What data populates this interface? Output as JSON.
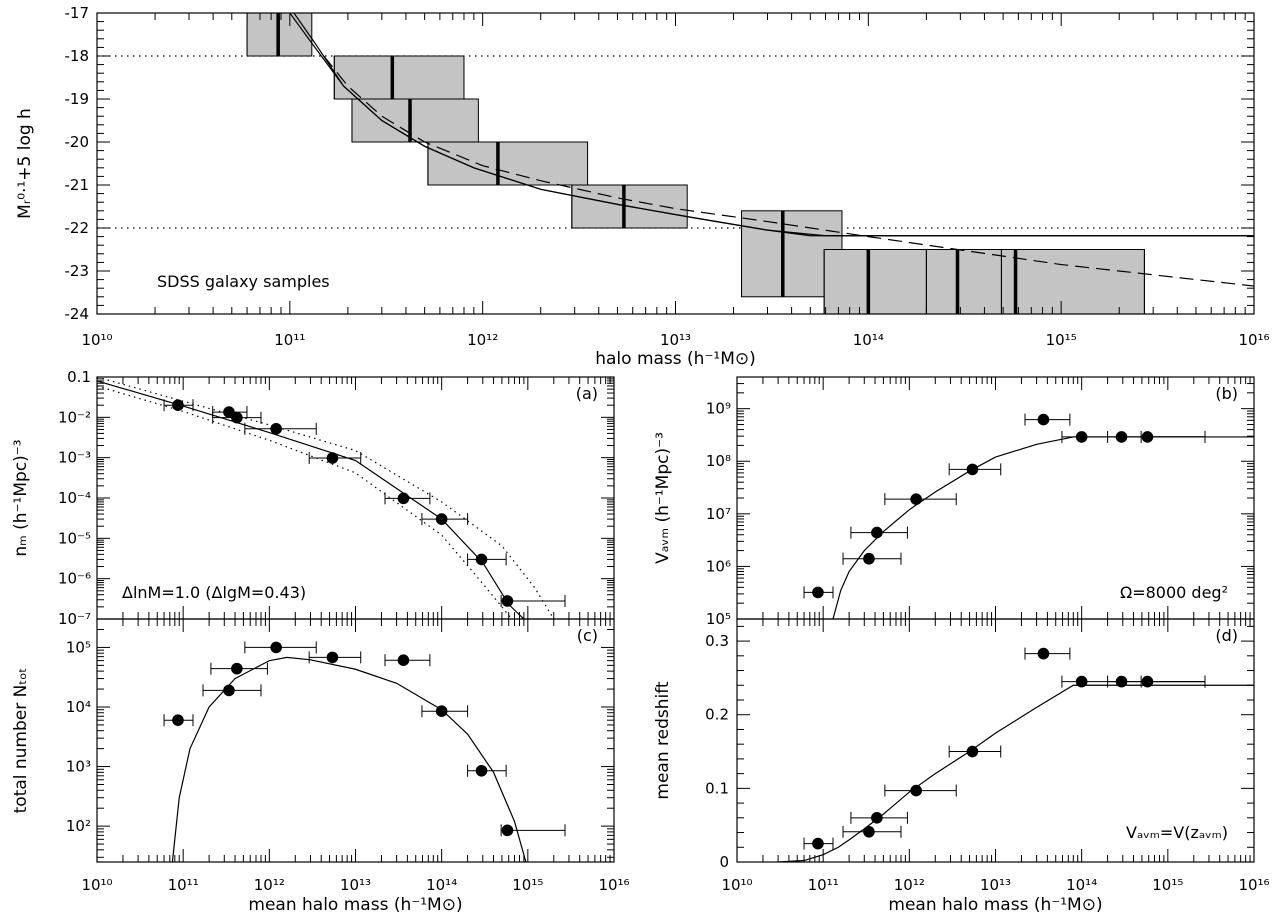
{
  "chart_data": [
    {
      "id": "top",
      "type": "box",
      "xscale": "log",
      "xlim": [
        10000000000.0,
        1e+16
      ],
      "ylim": [
        -24,
        -17
      ],
      "y_inverted": true,
      "xlabel": "halo mass (h⁻¹M⊙)",
      "ylabel": "Mᵣ⁰·¹+5 log h",
      "x_ticklabels": [
        "10¹⁰",
        "10¹¹",
        "10¹²",
        "10¹³",
        "10¹⁴",
        "10¹⁵",
        "10¹⁶"
      ],
      "y_ticklabels": [
        "-17",
        "-18",
        "-19",
        "-20",
        "-21",
        "-22",
        "-23",
        "-24"
      ],
      "annotation": "SDSS galaxy samples",
      "reference_lines_y": [
        -18,
        -22
      ],
      "boxes": [
        {
          "xmin": 60000000000.0,
          "xmax": 130000000000.0,
          "ymin": -18.0,
          "ymax": -17.0,
          "center": 87000000000.0
        },
        {
          "xmin": 170000000000.0,
          "xmax": 800000000000.0,
          "ymin": -19.0,
          "ymax": -18.0,
          "center": 340000000000.0
        },
        {
          "xmin": 210000000000.0,
          "xmax": 950000000000.0,
          "ymin": -20.0,
          "ymax": -19.0,
          "center": 420000000000.0
        },
        {
          "xmin": 520000000000.0,
          "xmax": 3500000000000.0,
          "ymin": -21.0,
          "ymax": -20.0,
          "center": 1200000000000.0
        },
        {
          "xmin": 2900000000000.0,
          "xmax": 11500000000000.0,
          "ymin": -22.0,
          "ymax": -21.0,
          "center": 5400000000000.0
        },
        {
          "xmin": 22000000000000.0,
          "xmax": 73000000000000.0,
          "ymin": -23.6,
          "ymax": -21.6,
          "center": 36000000000000.0
        },
        {
          "xmin": 59000000000000.0,
          "xmax": 2700000000000000.0,
          "ymin": -24.0,
          "ymax": -22.5,
          "center": 100000000000000.0
        },
        {
          "xmin": 200000000000000.0,
          "xmax": 2700000000000000.0,
          "ymin": -24.0,
          "ymax": -22.5,
          "center": 290000000000000.0
        },
        {
          "xmin": 490000000000000.0,
          "xmax": 2700000000000000.0,
          "ymin": -24.0,
          "ymax": -22.5,
          "center": 580000000000000.0
        }
      ],
      "series": [
        {
          "style": "solid",
          "x": [
            100000000000.0,
            130000000000.0,
            190000000000.0,
            300000000000.0,
            500000000000.0,
            900000000000.0,
            2000000000000.0,
            5000000000000.0,
            12000000000000.0,
            30000000000000.0,
            50000000000000.0,
            1e+16
          ],
          "y": [
            -17.0,
            -17.7,
            -18.7,
            -19.5,
            -20.1,
            -20.6,
            -21.1,
            -21.45,
            -21.75,
            -22.05,
            -22.18,
            -22.18
          ]
        },
        {
          "style": "solid",
          "x": [
            105000000000.0,
            135000000000.0,
            190000000000.0,
            300000000000.0,
            500000000000.0,
            900000000000.0,
            2000000000000.0,
            5000000000000.0,
            12000000000000.0,
            30000000000000.0,
            60000000000000.0,
            1e+16
          ],
          "y": [
            -17.0,
            -17.7,
            -18.7,
            -19.5,
            -20.1,
            -20.6,
            -21.1,
            -21.45,
            -21.75,
            -22.05,
            -22.18,
            -22.18
          ]
        },
        {
          "style": "dashed",
          "x": [
            150000000000.0,
            200000000000.0,
            300000000000.0,
            500000000000.0,
            1000000000000.0,
            2000000000000.0,
            5000000000000.0,
            10000000000000.0,
            30000000000000.0,
            100000000000000.0,
            1000000000000000.0,
            1e+16
          ],
          "y": [
            -18.0,
            -18.7,
            -19.4,
            -20.0,
            -20.55,
            -20.9,
            -21.3,
            -21.55,
            -21.85,
            -22.2,
            -22.85,
            -23.35
          ]
        }
      ]
    },
    {
      "id": "a",
      "type": "scatter",
      "panel_label": "(a)",
      "xscale": "log",
      "yscale": "log",
      "xlim": [
        10000000000.0,
        1e+16
      ],
      "ylim": [
        1e-07,
        0.1
      ],
      "ylabel": "nₘ (h⁻¹Mpc)⁻³",
      "y_ticklabels": [
        "10⁻⁷",
        "10⁻⁶",
        "10⁻⁵",
        "10⁻⁴",
        "10⁻³",
        "10⁻²",
        "0.1"
      ],
      "annotation": "ΔlnM=1.0  (ΔlgM=0.43)",
      "points": [
        {
          "x": 87000000000.0,
          "y": 0.02,
          "xlo": 60000000000.0,
          "xhi": 130000000000.0
        },
        {
          "x": 340000000000.0,
          "y": 0.0135,
          "xlo": 220000000000.0,
          "xhi": 550000000000.0
        },
        {
          "x": 420000000000.0,
          "y": 0.0098,
          "xlo": 220000000000.0,
          "xhi": 800000000000.0
        },
        {
          "x": 1200000000000.0,
          "y": 0.0052,
          "xlo": 520000000000.0,
          "xhi": 3500000000000.0
        },
        {
          "x": 5400000000000.0,
          "y": 0.00098,
          "xlo": 2900000000000.0,
          "xhi": 11500000000000.0
        },
        {
          "x": 36000000000000.0,
          "y": 9.8e-05,
          "xlo": 22000000000000.0,
          "xhi": 73000000000000.0
        },
        {
          "x": 100000000000000.0,
          "y": 3e-05,
          "xlo": 59000000000000.0,
          "xhi": 200000000000000.0
        },
        {
          "x": 290000000000000.0,
          "y": 3e-06,
          "xlo": 200000000000000.0,
          "xhi": 560000000000000.0
        },
        {
          "x": 580000000000000.0,
          "y": 2.8e-07,
          "xlo": 490000000000000.0,
          "xhi": 2700000000000000.0
        }
      ],
      "series": [
        {
          "style": "solid",
          "x": [
            10000000000.0,
            100000000000.0,
            1000000000000.0,
            10000000000000.0,
            100000000000000.0,
            300000000000000.0,
            600000000000000.0,
            900000000000000.0
          ],
          "y": [
            0.08,
            0.019,
            0.0042,
            0.00085,
            3e-05,
            2.5e-06,
            2.3e-07,
            1e-07
          ]
        },
        {
          "style": "dotted",
          "x": [
            10000000000.0,
            100000000000.0,
            1000000000000.0,
            10000000000000.0,
            100000000000000.0,
            500000000000000.0,
            1200000000000000.0,
            2000000000000000.0
          ],
          "y": [
            0.1,
            0.025,
            0.0065,
            0.0015,
            8e-05,
            6.5e-06,
            6e-07,
            1e-07
          ]
        },
        {
          "style": "dotted",
          "x": [
            10000000000.0,
            100000000000.0,
            1000000000000.0,
            10000000000000.0,
            100000000000000.0,
            250000000000000.0,
            500000000000000.0,
            650000000000000.0
          ],
          "y": [
            0.06,
            0.014,
            0.0027,
            0.00042,
            1.2e-05,
            1.2e-06,
            2e-07,
            1e-07
          ]
        }
      ]
    },
    {
      "id": "b",
      "type": "scatter",
      "panel_label": "(b)",
      "xscale": "log",
      "yscale": "log",
      "xlim": [
        10000000000.0,
        1e+16
      ],
      "ylim": [
        100000.0,
        4000000000.0
      ],
      "ylabel": "Vₐᵥₘ (h⁻¹Mpc)⁻³",
      "y_ticklabels": [
        "10⁵",
        "10⁶",
        "10⁷",
        "10⁸",
        "10⁹"
      ],
      "annotation": "Ω=8000 deg²",
      "points": [
        {
          "x": 87000000000.0,
          "y": 320000.0,
          "xlo": 60000000000.0,
          "xhi": 130000000000.0
        },
        {
          "x": 340000000000.0,
          "y": 1400000.0,
          "xlo": 170000000000.0,
          "xhi": 800000000000.0
        },
        {
          "x": 420000000000.0,
          "y": 4400000.0,
          "xlo": 210000000000.0,
          "xhi": 950000000000.0
        },
        {
          "x": 1200000000000.0,
          "y": 19000000.0,
          "xlo": 520000000000.0,
          "xhi": 3500000000000.0
        },
        {
          "x": 5400000000000.0,
          "y": 70000000.0,
          "xlo": 2900000000000.0,
          "xhi": 11500000000000.0
        },
        {
          "x": 36000000000000.0,
          "y": 620000000.0,
          "xlo": 22000000000000.0,
          "xhi": 73000000000000.0
        },
        {
          "x": 100000000000000.0,
          "y": 290000000.0,
          "xlo": 59000000000000.0,
          "xhi": 2700000000000000.0
        },
        {
          "x": 290000000000000.0,
          "y": 290000000.0,
          "xlo": 200000000000000.0,
          "xhi": 2700000000000000.0
        },
        {
          "x": 580000000000000.0,
          "y": 290000000.0,
          "xlo": 490000000000000.0,
          "xhi": 2700000000000000.0
        }
      ],
      "series": [
        {
          "style": "solid",
          "x": [
            130000000000.0,
            160000000000.0,
            200000000000.0,
            300000000000.0,
            500000000000.0,
            1000000000000.0,
            2000000000000.0,
            5000000000000.0,
            10000000000000.0,
            30000000000000.0,
            80000000000000.0,
            1e+16
          ],
          "y": [
            100000.0,
            350000.0,
            800000.0,
            2000000.0,
            4600000.0,
            12000000.0,
            26000000.0,
            65000000.0,
            120000000.0,
            210000000.0,
            290000000.0,
            290000000.0
          ]
        }
      ]
    },
    {
      "id": "c",
      "type": "scatter",
      "panel_label": "(c)",
      "xscale": "log",
      "yscale": "log",
      "xlim": [
        10000000000.0,
        1e+16
      ],
      "ylim": [
        25,
        300000
      ],
      "xlabel": "mean halo mass (h⁻¹M⊙)",
      "ylabel": "total number Nₜₒₜ",
      "x_ticklabels": [
        "10¹⁰",
        "10¹¹",
        "10¹²",
        "10¹³",
        "10¹⁴",
        "10¹⁵",
        "10¹⁶"
      ],
      "y_ticklabels": [
        "10²",
        "10³",
        "10⁴",
        "10⁵"
      ],
      "points": [
        {
          "x": 87000000000.0,
          "y": 6000,
          "xlo": 60000000000.0,
          "xhi": 130000000000.0
        },
        {
          "x": 340000000000.0,
          "y": 19000,
          "xlo": 170000000000.0,
          "xhi": 800000000000.0
        },
        {
          "x": 420000000000.0,
          "y": 44000,
          "xlo": 210000000000.0,
          "xhi": 950000000000.0
        },
        {
          "x": 1200000000000.0,
          "y": 100000,
          "xlo": 520000000000.0,
          "xhi": 3500000000000.0
        },
        {
          "x": 5400000000000.0,
          "y": 68000,
          "xlo": 2900000000000.0,
          "xhi": 11500000000000.0
        },
        {
          "x": 36000000000000.0,
          "y": 61000,
          "xlo": 22000000000000.0,
          "xhi": 73000000000000.0
        },
        {
          "x": 100000000000000.0,
          "y": 8500,
          "xlo": 59000000000000.0,
          "xhi": 200000000000000.0
        },
        {
          "x": 290000000000000.0,
          "y": 850,
          "xlo": 200000000000000.0,
          "xhi": 560000000000000.0
        },
        {
          "x": 580000000000000.0,
          "y": 85,
          "xlo": 490000000000000.0,
          "xhi": 2700000000000000.0
        }
      ],
      "series": [
        {
          "style": "solid",
          "x": [
            75000000000.0,
            90000000000.0,
            120000000000.0,
            200000000000.0,
            400000000000.0,
            1000000000000.0,
            1600000000000.0,
            3000000000000.0,
            10000000000000.0,
            30000000000000.0,
            100000000000000.0,
            200000000000000.0,
            400000000000000.0,
            700000000000000.0,
            950000000000000.0
          ],
          "y": [
            25,
            300,
            2000,
            10000,
            30000,
            60000,
            68000,
            62000,
            43000,
            25000,
            9000,
            3500,
            800,
            120,
            25
          ]
        }
      ]
    },
    {
      "id": "d",
      "type": "scatter",
      "panel_label": "(d)",
      "xscale": "log",
      "xlim": [
        10000000000.0,
        1e+16
      ],
      "ylim": [
        0,
        0.33
      ],
      "xlabel": "mean halo mass (h⁻¹M⊙)",
      "ylabel": "mean redshift",
      "x_ticklabels": [
        "10¹⁰",
        "10¹¹",
        "10¹²",
        "10¹³",
        "10¹⁴",
        "10¹⁵",
        "10¹⁶"
      ],
      "y_ticklabels": [
        "0",
        "0.1",
        "0.2",
        "0.3"
      ],
      "annotation": "Vₐᵥₘ=V(zₐᵥₘ)",
      "points": [
        {
          "x": 87000000000.0,
          "y": 0.025,
          "xlo": 60000000000.0,
          "xhi": 130000000000.0
        },
        {
          "x": 340000000000.0,
          "y": 0.041,
          "xlo": 170000000000.0,
          "xhi": 800000000000.0
        },
        {
          "x": 420000000000.0,
          "y": 0.06,
          "xlo": 210000000000.0,
          "xhi": 950000000000.0
        },
        {
          "x": 1200000000000.0,
          "y": 0.097,
          "xlo": 520000000000.0,
          "xhi": 3500000000000.0
        },
        {
          "x": 5400000000000.0,
          "y": 0.15,
          "xlo": 2900000000000.0,
          "xhi": 11500000000000.0
        },
        {
          "x": 36000000000000.0,
          "y": 0.283,
          "xlo": 22000000000000.0,
          "xhi": 73000000000000.0
        },
        {
          "x": 100000000000000.0,
          "y": 0.245,
          "xlo": 59000000000000.0,
          "xhi": 2700000000000000.0
        },
        {
          "x": 290000000000000.0,
          "y": 0.245,
          "xlo": 200000000000000.0,
          "xhi": 2700000000000000.0
        },
        {
          "x": 580000000000000.0,
          "y": 0.245,
          "xlo": 490000000000000.0,
          "xhi": 2700000000000000.0
        }
      ],
      "series": [
        {
          "style": "solid",
          "x": [
            30000000000.0,
            60000000000.0,
            100000000000.0,
            150000000000.0,
            200000000000.0,
            300000000000.0,
            500000000000.0,
            1000000000000.0,
            2000000000000.0,
            5000000000000.0,
            10000000000000.0,
            30000000000000.0,
            80000000000000.0,
            1e+16
          ],
          "y": [
            0.0,
            0.002,
            0.01,
            0.02,
            0.03,
            0.045,
            0.065,
            0.095,
            0.12,
            0.15,
            0.175,
            0.21,
            0.24,
            0.24
          ]
        }
      ]
    }
  ]
}
